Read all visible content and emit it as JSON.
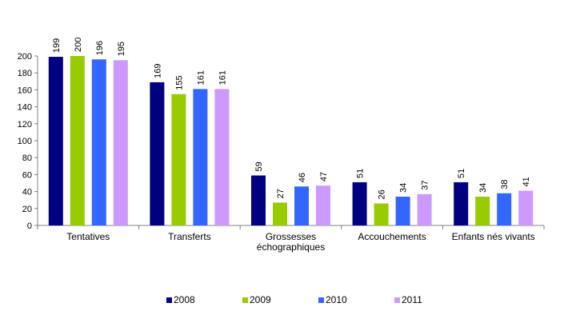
{
  "chart_data": {
    "type": "bar",
    "title": "",
    "xlabel": "",
    "ylabel": "",
    "ylim": [
      0,
      200
    ],
    "yticks": [
      0,
      20,
      40,
      60,
      80,
      100,
      120,
      140,
      160,
      180,
      200
    ],
    "grid": false,
    "legend_position": "bottom",
    "categories": [
      [
        "Tentatives"
      ],
      [
        "Transferts"
      ],
      [
        "Grossesses",
        "échographiques"
      ],
      [
        "Accouchements"
      ],
      [
        "Enfants nés vivants"
      ]
    ],
    "series": [
      {
        "name": "2008",
        "color": "#000080",
        "values": [
          199,
          169,
          59,
          51,
          51
        ]
      },
      {
        "name": "2009",
        "color": "#99CC00",
        "values": [
          200,
          155,
          27,
          26,
          34
        ]
      },
      {
        "name": "2010",
        "color": "#3366FF",
        "values": [
          196,
          161,
          46,
          34,
          38
        ]
      },
      {
        "name": "2011",
        "color": "#CC99FF",
        "values": [
          195,
          161,
          47,
          37,
          41
        ]
      }
    ]
  }
}
